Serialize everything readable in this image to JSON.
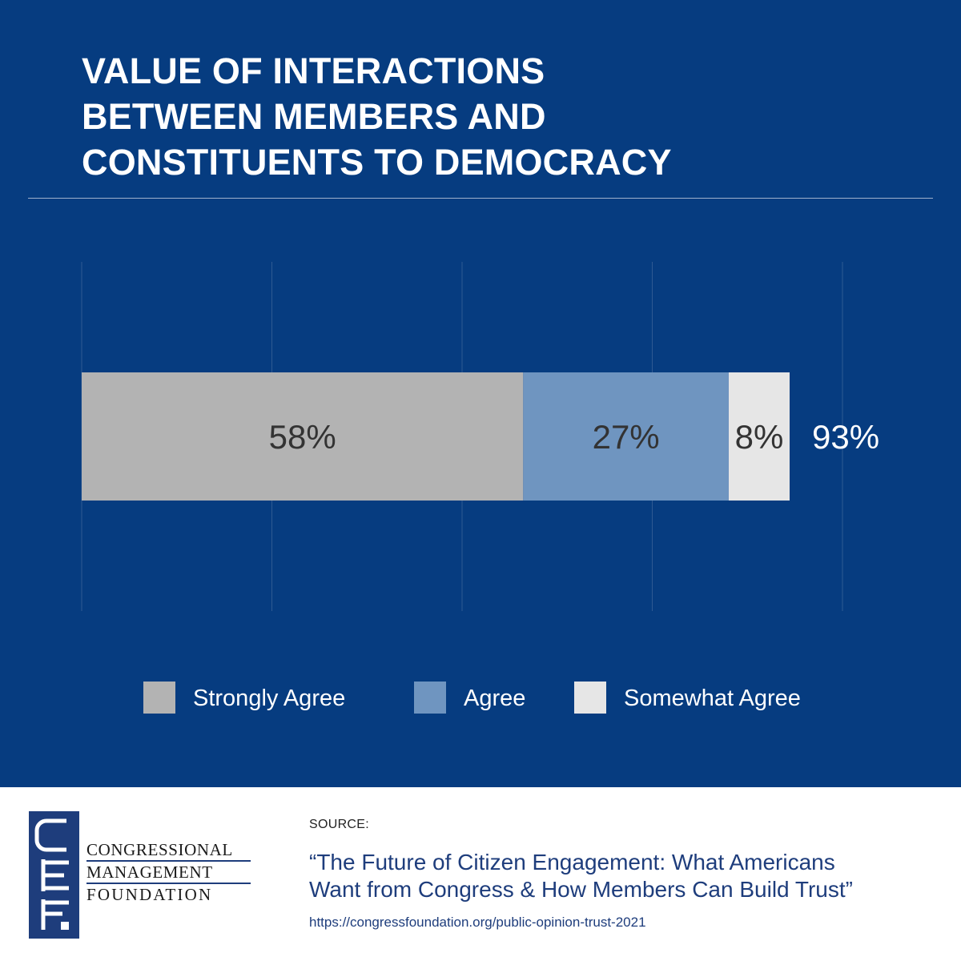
{
  "title": [
    "VALUE OF INTERACTIONS",
    "BETWEEN MEMBERS AND",
    "CONSTITUENTS TO DEMOCRACY"
  ],
  "colors": {
    "background": "#063c80",
    "strongly_agree": "#b3b3b3",
    "agree": "#6f95c0",
    "somewhat_agree": "#e6e6e6",
    "gridline": "#2f5a92",
    "brand_blue": "#1e3d7c"
  },
  "chart_data": {
    "type": "bar",
    "orientation": "horizontal",
    "stacked": true,
    "title": "VALUE OF INTERACTIONS BETWEEN MEMBERS AND CONSTITUENTS TO DEMOCRACY",
    "categories": [
      ""
    ],
    "series": [
      {
        "name": "Strongly Agree",
        "values": [
          58
        ],
        "label": "58%",
        "color": "#b3b3b3"
      },
      {
        "name": "Agree",
        "values": [
          27
        ],
        "label": "27%",
        "color": "#6f95c0"
      },
      {
        "name": "Somewhat Agree",
        "values": [
          8
        ],
        "label": "8%",
        "color": "#e6e6e6"
      }
    ],
    "total": 93,
    "total_label": "93%",
    "xlim": [
      0,
      100
    ],
    "grid": true,
    "legend": "bottom"
  },
  "footer": {
    "logo_lines": [
      "CONGRESSIONAL",
      "MANAGEMENT",
      "FOUNDATION"
    ],
    "source_label": "SOURCE:",
    "source_title_lines": [
      "“The Future of Citizen Engagement: What Americans",
      "Want from Congress & How Members Can Build Trust”"
    ],
    "source_url": "https://congressfoundation.org/public-opinion-trust-2021"
  }
}
